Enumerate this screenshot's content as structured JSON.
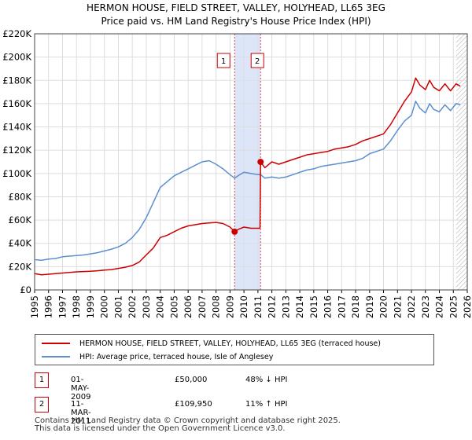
{
  "title": {
    "line1": "HERMON HOUSE, FIELD STREET, VALLEY, HOLYHEAD, LL65 3EG",
    "line2": "Price paid vs. HM Land Registry's House Price Index (HPI)"
  },
  "colors": {
    "property": "#cc0000",
    "hpi": "#5b8fd0",
    "shade": "#dde6f8",
    "grid": "#dddddd"
  },
  "chart_data": {
    "type": "line",
    "x_range": [
      1995,
      2026
    ],
    "ylim": [
      0,
      220000
    ],
    "y_ticks": [
      {
        "value": 0,
        "label": "£0"
      },
      {
        "value": 20000,
        "label": "£20K"
      },
      {
        "value": 40000,
        "label": "£40K"
      },
      {
        "value": 60000,
        "label": "£60K"
      },
      {
        "value": 80000,
        "label": "£80K"
      },
      {
        "value": 100000,
        "label": "£100K"
      },
      {
        "value": 120000,
        "label": "£120K"
      },
      {
        "value": 140000,
        "label": "£140K"
      },
      {
        "value": 160000,
        "label": "£160K"
      },
      {
        "value": 180000,
        "label": "£180K"
      },
      {
        "value": 200000,
        "label": "£200K"
      },
      {
        "value": 220000,
        "label": "£220K"
      }
    ],
    "x_ticks": [
      "1995",
      "1996",
      "1997",
      "1998",
      "1999",
      "2000",
      "2001",
      "2002",
      "2003",
      "2004",
      "2005",
      "2006",
      "2007",
      "2008",
      "2009",
      "2010",
      "2011",
      "2012",
      "2013",
      "2014",
      "2015",
      "2016",
      "2017",
      "2018",
      "2019",
      "2020",
      "2021",
      "2022",
      "2023",
      "2024",
      "2025",
      "2026"
    ],
    "shaded_period": [
      2009.33,
      2011.19
    ],
    "hatched_from": 2025.2,
    "series": [
      {
        "name": "HERMON HOUSE, FIELD STREET, VALLEY, HOLYHEAD, LL65 3EG (terraced house)",
        "color": "#cc0000",
        "points": [
          [
            1995.0,
            14000
          ],
          [
            1995.5,
            13000
          ],
          [
            1996.0,
            13500
          ],
          [
            1996.5,
            14000
          ],
          [
            1997.0,
            14500
          ],
          [
            1997.5,
            15000
          ],
          [
            1998.0,
            15500
          ],
          [
            1998.5,
            15800
          ],
          [
            1999.0,
            16000
          ],
          [
            1999.5,
            16500
          ],
          [
            2000.0,
            17000
          ],
          [
            2000.5,
            17500
          ],
          [
            2001.0,
            18500
          ],
          [
            2001.5,
            19500
          ],
          [
            2002.0,
            21000
          ],
          [
            2002.5,
            24000
          ],
          [
            2003.0,
            30000
          ],
          [
            2003.5,
            36000
          ],
          [
            2004.0,
            45000
          ],
          [
            2004.5,
            47000
          ],
          [
            2005.0,
            50000
          ],
          [
            2005.5,
            53000
          ],
          [
            2006.0,
            55000
          ],
          [
            2006.5,
            56000
          ],
          [
            2007.0,
            57000
          ],
          [
            2007.5,
            57500
          ],
          [
            2008.0,
            58000
          ],
          [
            2008.5,
            57000
          ],
          [
            2009.0,
            54000
          ],
          [
            2009.33,
            50000
          ],
          [
            2009.6,
            52000
          ],
          [
            2010.0,
            54000
          ],
          [
            2010.5,
            53000
          ],
          [
            2011.0,
            53000
          ],
          [
            2011.15,
            53000
          ],
          [
            2011.19,
            109950
          ],
          [
            2011.5,
            105000
          ],
          [
            2012.0,
            110000
          ],
          [
            2012.5,
            108000
          ],
          [
            2013.0,
            110000
          ],
          [
            2013.5,
            112000
          ],
          [
            2014.0,
            114000
          ],
          [
            2014.5,
            116000
          ],
          [
            2015.0,
            117000
          ],
          [
            2015.5,
            118000
          ],
          [
            2016.0,
            119000
          ],
          [
            2016.5,
            121000
          ],
          [
            2017.0,
            122000
          ],
          [
            2017.5,
            123000
          ],
          [
            2018.0,
            125000
          ],
          [
            2018.5,
            128000
          ],
          [
            2019.0,
            130000
          ],
          [
            2019.5,
            132000
          ],
          [
            2020.0,
            134000
          ],
          [
            2020.5,
            142000
          ],
          [
            2021.0,
            152000
          ],
          [
            2021.5,
            162000
          ],
          [
            2022.0,
            170000
          ],
          [
            2022.3,
            182000
          ],
          [
            2022.6,
            176000
          ],
          [
            2023.0,
            172000
          ],
          [
            2023.3,
            180000
          ],
          [
            2023.6,
            174000
          ],
          [
            2024.0,
            171000
          ],
          [
            2024.4,
            177000
          ],
          [
            2024.8,
            171000
          ],
          [
            2025.2,
            177000
          ],
          [
            2025.5,
            175000
          ]
        ]
      },
      {
        "name": "HPI: Average price, terraced house, Isle of Anglesey",
        "color": "#5b8fd0",
        "points": [
          [
            1995.0,
            26000
          ],
          [
            1995.5,
            25500
          ],
          [
            1996.0,
            26500
          ],
          [
            1996.5,
            27000
          ],
          [
            1997.0,
            28500
          ],
          [
            1997.5,
            29000
          ],
          [
            1998.0,
            29500
          ],
          [
            1998.5,
            30000
          ],
          [
            1999.0,
            31000
          ],
          [
            1999.5,
            32000
          ],
          [
            2000.0,
            33500
          ],
          [
            2000.5,
            35000
          ],
          [
            2001.0,
            37000
          ],
          [
            2001.5,
            40000
          ],
          [
            2002.0,
            45000
          ],
          [
            2002.5,
            52000
          ],
          [
            2003.0,
            62000
          ],
          [
            2003.5,
            75000
          ],
          [
            2004.0,
            88000
          ],
          [
            2004.5,
            93000
          ],
          [
            2005.0,
            98000
          ],
          [
            2005.5,
            101000
          ],
          [
            2006.0,
            104000
          ],
          [
            2006.5,
            107000
          ],
          [
            2007.0,
            110000
          ],
          [
            2007.5,
            111000
          ],
          [
            2008.0,
            108000
          ],
          [
            2008.5,
            104000
          ],
          [
            2009.0,
            99000
          ],
          [
            2009.33,
            96000
          ],
          [
            2009.7,
            99000
          ],
          [
            2010.0,
            101000
          ],
          [
            2010.5,
            100000
          ],
          [
            2011.0,
            99000
          ],
          [
            2011.19,
            99000
          ],
          [
            2011.5,
            96000
          ],
          [
            2012.0,
            97000
          ],
          [
            2012.5,
            96000
          ],
          [
            2013.0,
            97000
          ],
          [
            2013.5,
            99000
          ],
          [
            2014.0,
            101000
          ],
          [
            2014.5,
            103000
          ],
          [
            2015.0,
            104000
          ],
          [
            2015.5,
            106000
          ],
          [
            2016.0,
            107000
          ],
          [
            2016.5,
            108000
          ],
          [
            2017.0,
            109000
          ],
          [
            2017.5,
            110000
          ],
          [
            2018.0,
            111000
          ],
          [
            2018.5,
            113000
          ],
          [
            2019.0,
            117000
          ],
          [
            2019.5,
            119000
          ],
          [
            2020.0,
            121000
          ],
          [
            2020.5,
            128000
          ],
          [
            2021.0,
            137000
          ],
          [
            2021.5,
            145000
          ],
          [
            2022.0,
            150000
          ],
          [
            2022.3,
            162000
          ],
          [
            2022.6,
            156000
          ],
          [
            2023.0,
            152000
          ],
          [
            2023.3,
            160000
          ],
          [
            2023.6,
            155000
          ],
          [
            2024.0,
            153000
          ],
          [
            2024.4,
            159000
          ],
          [
            2024.8,
            154000
          ],
          [
            2025.2,
            160000
          ],
          [
            2025.5,
            159000
          ]
        ]
      }
    ],
    "markers": [
      {
        "label": "1",
        "x": 2009.33,
        "y": 50000
      },
      {
        "label": "2",
        "x": 2011.19,
        "y": 109950
      }
    ]
  },
  "legend": {
    "property_label": "HERMON HOUSE, FIELD STREET, VALLEY, HOLYHEAD, LL65 3EG (terraced house)",
    "hpi_label": "HPI: Average price, terraced house, Isle of Anglesey"
  },
  "transactions": [
    {
      "num": "1",
      "date": "01-MAY-2009",
      "price": "£50,000",
      "hpi": "48% ↓ HPI"
    },
    {
      "num": "2",
      "date": "11-MAR-2011",
      "price": "£109,950",
      "hpi": "11% ↑ HPI"
    }
  ],
  "footer": {
    "line1": "Contains HM Land Registry data © Crown copyright and database right 2025.",
    "line2": "This data is licensed under the Open Government Licence v3.0."
  }
}
